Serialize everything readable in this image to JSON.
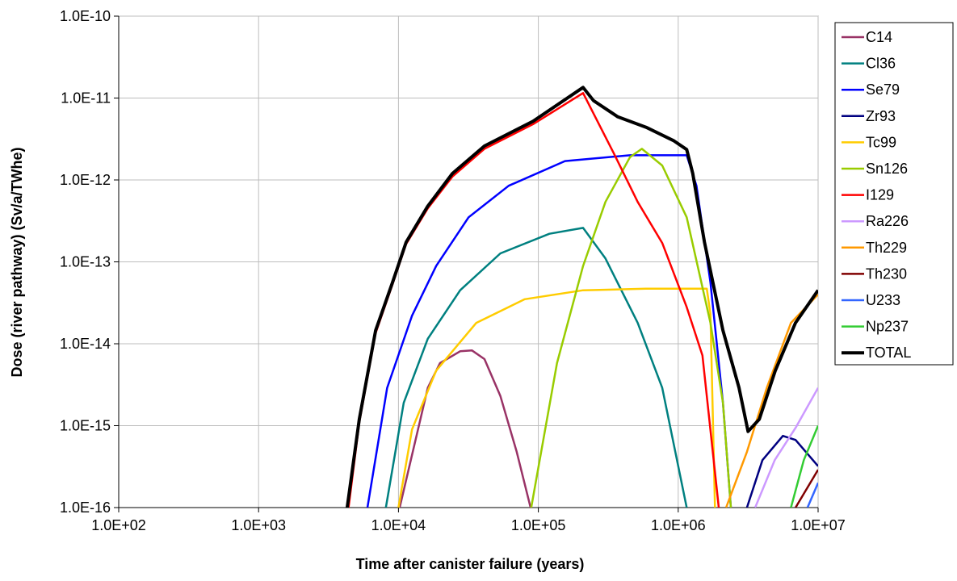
{
  "chart_data": {
    "type": "line",
    "x_label": "Time after canister failure (years)",
    "y_label": "Dose (river pathway) (Sv/a/TWhe)",
    "xlog": true,
    "ylog": true,
    "grid": true,
    "legend": "right",
    "xlim": [
      100,
      10000000
    ],
    "ylim": [
      1e-16,
      1e-10
    ],
    "xticks": [
      {
        "value": 100,
        "label": "1.0E+02"
      },
      {
        "value": 1000,
        "label": "1.0E+03"
      },
      {
        "value": 10000,
        "label": "1.0E+04"
      },
      {
        "value": 100000,
        "label": "1.0E+05"
      },
      {
        "value": 1000000,
        "label": "1.0E+06"
      },
      {
        "value": 10000000,
        "label": "1.0E+07"
      }
    ],
    "yticks": [
      {
        "value": 1e-16,
        "label": "1.0E-16"
      },
      {
        "value": 1e-15,
        "label": "1.0E-15"
      },
      {
        "value": 1e-14,
        "label": "1.0E-14"
      },
      {
        "value": 1e-13,
        "label": "1.0E-13"
      },
      {
        "value": 1e-12,
        "label": "1.0E-12"
      },
      {
        "value": 1e-11,
        "label": "1.0E-11"
      },
      {
        "value": 1e-10,
        "label": "1.0E-10"
      }
    ],
    "series": [
      {
        "name": "C14",
        "color": "#993366",
        "width": 2.5,
        "x": [
          10200,
          16200,
          19800,
          27600,
          33500,
          41200,
          53500,
          70000,
          88000
        ],
        "values": [
          1e-16,
          2.9e-15,
          5.8e-15,
          8.1e-15,
          8.3e-15,
          6.5e-15,
          2.3e-15,
          4.8e-16,
          1e-16
        ]
      },
      {
        "name": "Cl36",
        "color": "#008080",
        "width": 2.5,
        "x": [
          8130,
          10900,
          16200,
          27600,
          53500,
          120000,
          209000,
          302000,
          513000,
          769000,
          1150000
        ],
        "values": [
          1e-16,
          1.9e-15,
          1.15e-14,
          4.5e-14,
          1.27e-13,
          2.2e-13,
          2.6e-13,
          1.1e-13,
          1.8e-14,
          2.9e-15,
          1e-16
        ]
      },
      {
        "name": "Se79",
        "color": "#0000ff",
        "width": 2.5,
        "x": [
          6000,
          8300,
          12500,
          18600,
          31700,
          61400,
          155000,
          452000,
          1150000,
          1350000,
          1700000,
          2090000,
          2380000
        ],
        "values": [
          1e-16,
          2.9e-15,
          2.2e-14,
          8.9e-14,
          3.5e-13,
          8.5e-13,
          1.7e-12,
          2e-12,
          2e-12,
          8.5e-13,
          5.6e-14,
          1.9e-15,
          1e-16
        ]
      },
      {
        "name": "Zr93",
        "color": "#000080",
        "width": 2.5,
        "x": [
          3100000,
          4000000,
          5600000,
          6900000,
          10000000
        ],
        "values": [
          1e-16,
          3.8e-16,
          7.5e-16,
          6.7e-16,
          3.2e-16
        ]
      },
      {
        "name": "Tc99",
        "color": "#ffcc00",
        "width": 2.5,
        "x": [
          10000,
          12500,
          18600,
          36000,
          80000,
          209000,
          589000,
          1600000,
          1700000,
          1830000
        ],
        "values": [
          1e-16,
          9e-16,
          4.7e-15,
          1.8e-14,
          3.5e-14,
          4.5e-14,
          4.7e-14,
          4.7e-14,
          2.3e-14,
          1e-16
        ]
      },
      {
        "name": "Sn126",
        "color": "#99cc00",
        "width": 2.5,
        "x": [
          89000,
          136000,
          209000,
          302000,
          452000,
          550000,
          769000,
          1150000,
          1700000,
          2090000,
          2380000
        ],
        "values": [
          1e-16,
          5.8e-15,
          8.9e-14,
          5.4e-13,
          1.9e-12,
          2.4e-12,
          1.5e-12,
          3.5e-13,
          1.8e-14,
          1.9e-15,
          1e-16
        ]
      },
      {
        "name": "I129",
        "color": "#ff0000",
        "width": 2.5,
        "x": [
          4400,
          5250,
          6860,
          9060,
          11350,
          16200,
          24300,
          41200,
          91600,
          209000,
          347000,
          513000,
          769000,
          1150000,
          1490000,
          1950000
        ],
        "values": [
          1e-16,
          1.1e-15,
          1.35e-14,
          5.3e-14,
          1.65e-13,
          4.5e-13,
          1.1e-12,
          2.4e-12,
          4.8e-12,
          1.15e-11,
          2.1e-12,
          5.4e-13,
          1.7e-13,
          2.8e-14,
          7.2e-15,
          1e-16
        ]
      },
      {
        "name": "Ra226",
        "color": "#cc99ff",
        "width": 2.5,
        "x": [
          3550000,
          4900000,
          6900000,
          10000000
        ],
        "values": [
          1e-16,
          3.8e-16,
          9.4e-16,
          2.9e-15
        ]
      },
      {
        "name": "Th229",
        "color": "#ff9900",
        "width": 2.5,
        "x": [
          2200000,
          3100000,
          4300000,
          6400000,
          10000000
        ],
        "values": [
          1e-16,
          4.8e-16,
          2.9e-15,
          1.8e-14,
          4e-14
        ]
      },
      {
        "name": "Th230",
        "color": "#800000",
        "width": 2.5,
        "x": [
          6900000,
          10000000
        ],
        "values": [
          1e-16,
          2.9e-16
        ]
      },
      {
        "name": "U233",
        "color": "#3366ff",
        "width": 2.5,
        "x": [
          8400000,
          10000000
        ],
        "values": [
          1e-16,
          2e-16
        ]
      },
      {
        "name": "Np237",
        "color": "#33cc33",
        "width": 2.5,
        "x": [
          6400000,
          7900000,
          10000000
        ],
        "values": [
          1e-16,
          3.8e-16,
          1e-15
        ]
      },
      {
        "name": "TOTAL",
        "color": "#000000",
        "width": 4,
        "x": [
          4300,
          5250,
          6860,
          9060,
          11350,
          16200,
          24300,
          41200,
          91600,
          209000,
          248000,
          370000,
          589000,
          933000,
          1150000,
          1270000,
          1540000,
          2090000,
          2720000,
          3160000,
          3800000,
          4940000,
          6890000,
          10000000
        ],
        "values": [
          1e-16,
          1.2e-15,
          1.45e-14,
          5.6e-14,
          1.74e-13,
          4.8e-13,
          1.2e-12,
          2.6e-12,
          5.2e-12,
          1.35e-11,
          9.3e-12,
          5.9e-12,
          4.4e-12,
          3e-12,
          2.35e-12,
          1.2e-12,
          1.74e-13,
          1.45e-14,
          2.9e-15,
          8.5e-16,
          1.2e-15,
          4.7e-15,
          1.8e-14,
          4.5e-14
        ]
      }
    ]
  }
}
